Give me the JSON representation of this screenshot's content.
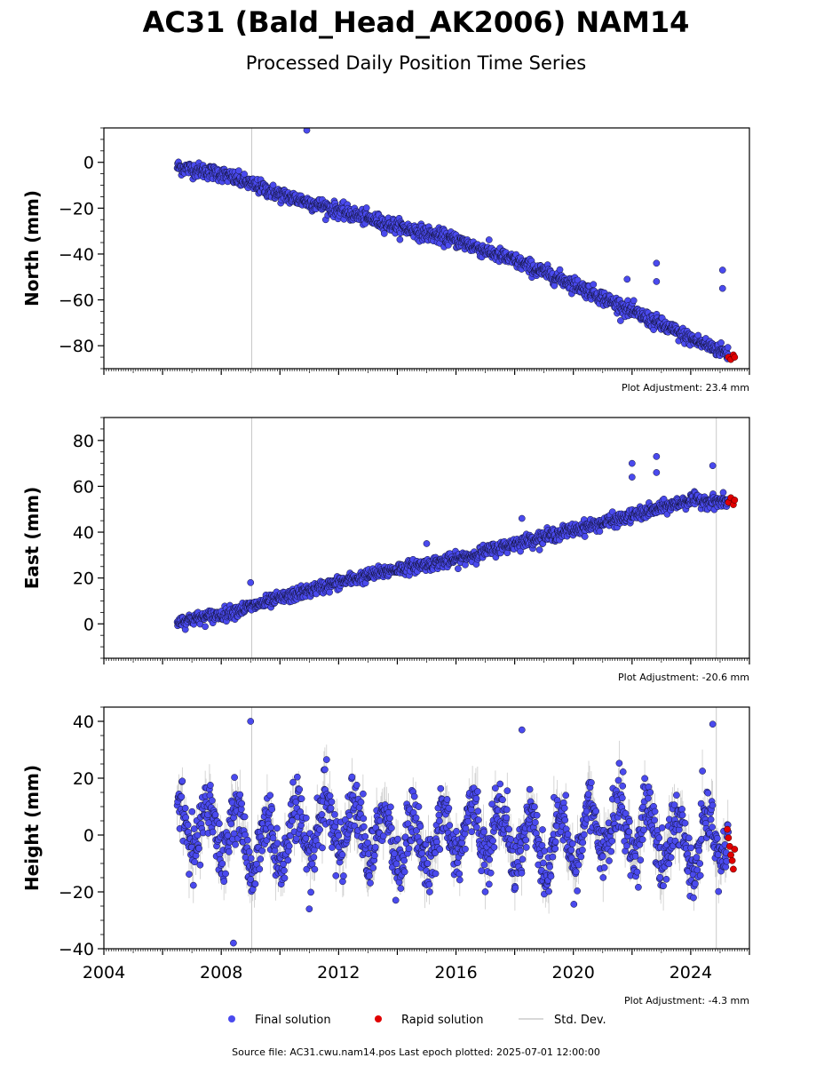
{
  "figure": {
    "title": "AC31 (Bald_Head_AK2006) NAM14",
    "subtitle": "Processed Daily Position Time Series",
    "source_text": "Source file: AC31.cwu.nam14.pos  Last epoch plotted: 2025-07-01 12:00:00"
  },
  "legend": {
    "items": [
      {
        "label": "Final solution",
        "color": "#4a4aee"
      },
      {
        "label": "Rapid solution",
        "color": "#e00000"
      },
      {
        "label": "Std. Dev.",
        "color": "#cccccc"
      }
    ]
  },
  "colors": {
    "final": "#4a4aee",
    "rapid": "#e00000",
    "stddev": "#cccccc",
    "edge": "#000000"
  },
  "chart_data": [
    {
      "type": "scatter",
      "panel": "north",
      "ylabel": "North (mm)",
      "ylim": [
        -90,
        15
      ],
      "yticks": [
        0,
        -20,
        -40,
        -60,
        -80
      ],
      "xlim": [
        "2004-01-01",
        "2026-01-01"
      ],
      "x_tick_labels": [],
      "adjustment": "Plot Adjustment: 23.4 mm",
      "vertical_markers": [
        "2009-01-15"
      ],
      "trend": [
        {
          "x": "2006-07-01",
          "y": -2
        },
        {
          "x": "2008-01-01",
          "y": -5
        },
        {
          "x": "2010-01-01",
          "y": -14
        },
        {
          "x": "2012-01-01",
          "y": -21
        },
        {
          "x": "2014-01-01",
          "y": -28
        },
        {
          "x": "2016-01-01",
          "y": -34
        },
        {
          "x": "2018-01-01",
          "y": -43
        },
        {
          "x": "2020-01-01",
          "y": -53
        },
        {
          "x": "2022-01-01",
          "y": -65
        },
        {
          "x": "2024-01-01",
          "y": -77
        },
        {
          "x": "2025-06-01",
          "y": -84
        }
      ],
      "scatter_sd": 1.6,
      "outliers": [
        {
          "x": "2010-12-01",
          "y": 14
        },
        {
          "x": "2022-11-01",
          "y": -44
        },
        {
          "x": "2022-11-01",
          "y": -52
        },
        {
          "x": "2021-11-01",
          "y": -51
        },
        {
          "x": "2025-02-01",
          "y": -47
        },
        {
          "x": "2025-02-01",
          "y": -55
        }
      ],
      "rapid": [
        {
          "x": "2025-04-15",
          "y": -85
        },
        {
          "x": "2025-05-15",
          "y": -86
        },
        {
          "x": "2025-06-15",
          "y": -84
        },
        {
          "x": "2025-07-01",
          "y": -85
        }
      ]
    },
    {
      "type": "scatter",
      "panel": "east",
      "ylabel": "East (mm)",
      "ylim": [
        -15,
        90
      ],
      "yticks": [
        0,
        20,
        40,
        60,
        80
      ],
      "xlim": [
        "2004-01-01",
        "2026-01-01"
      ],
      "x_tick_labels": [],
      "adjustment": "Plot Adjustment: -20.6 mm",
      "vertical_markers": [
        "2009-01-15",
        "2024-11-15"
      ],
      "trend": [
        {
          "x": "2006-07-01",
          "y": 1
        },
        {
          "x": "2008-01-01",
          "y": 4
        },
        {
          "x": "2010-01-01",
          "y": 11
        },
        {
          "x": "2012-01-01",
          "y": 18
        },
        {
          "x": "2014-01-01",
          "y": 24
        },
        {
          "x": "2016-01-01",
          "y": 28
        },
        {
          "x": "2018-01-01",
          "y": 35
        },
        {
          "x": "2020-01-01",
          "y": 41
        },
        {
          "x": "2022-01-01",
          "y": 47
        },
        {
          "x": "2024-01-01",
          "y": 54
        },
        {
          "x": "2025-06-01",
          "y": 53
        }
      ],
      "scatter_sd": 1.4,
      "outliers": [
        {
          "x": "2022-01-01",
          "y": 70
        },
        {
          "x": "2022-01-01",
          "y": 64
        },
        {
          "x": "2022-11-01",
          "y": 73
        },
        {
          "x": "2022-11-01",
          "y": 66
        },
        {
          "x": "2024-10-01",
          "y": 69
        },
        {
          "x": "2009-01-01",
          "y": 18
        },
        {
          "x": "2015-01-01",
          "y": 35
        },
        {
          "x": "2018-04-01",
          "y": 46
        }
      ],
      "rapid": [
        {
          "x": "2025-04-15",
          "y": 53
        },
        {
          "x": "2025-05-15",
          "y": 55
        },
        {
          "x": "2025-06-15",
          "y": 52
        },
        {
          "x": "2025-07-01",
          "y": 54
        }
      ]
    },
    {
      "type": "scatter",
      "panel": "height",
      "ylabel": "Height (mm)",
      "ylim": [
        -40,
        45
      ],
      "yticks": [
        40,
        20,
        0,
        -20,
        -40
      ],
      "xlim": [
        "2004-01-01",
        "2026-01-01"
      ],
      "x_tick_labels": [
        "2004",
        "2008",
        "2012",
        "2016",
        "2020",
        "2024"
      ],
      "adjustment": "Plot Adjustment: -4.3 mm",
      "vertical_markers": [
        "2009-01-15",
        "2024-11-15"
      ],
      "seasonal_amplitude": 10,
      "scatter_sd": 5,
      "outliers": [
        {
          "x": "2008-06-01",
          "y": -38
        },
        {
          "x": "2009-01-01",
          "y": 40
        },
        {
          "x": "2018-04-01",
          "y": 37
        },
        {
          "x": "2024-10-01",
          "y": 39
        },
        {
          "x": "2011-01-01",
          "y": -26
        }
      ],
      "rapid": [
        {
          "x": "2025-04-01",
          "y": 2
        },
        {
          "x": "2025-04-15",
          "y": -1
        },
        {
          "x": "2025-05-01",
          "y": -4
        },
        {
          "x": "2025-05-15",
          "y": -7
        },
        {
          "x": "2025-06-01",
          "y": -9
        },
        {
          "x": "2025-06-15",
          "y": -12
        },
        {
          "x": "2025-07-01",
          "y": -5
        }
      ]
    }
  ]
}
